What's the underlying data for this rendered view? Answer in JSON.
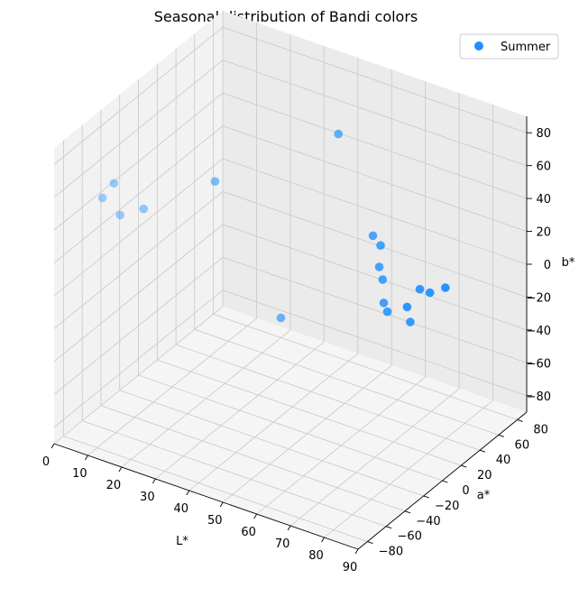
{
  "chart_data": {
    "type": "scatter",
    "title": "Seasonal distribution of Bandi colors",
    "xlabel": "L*",
    "ylabel": "a*",
    "zlabel": "b*",
    "xlim": [
      0,
      90
    ],
    "ylim": [
      -90,
      90
    ],
    "zlim": [
      -90,
      90
    ],
    "xticks": [
      "0",
      "10",
      "20",
      "30",
      "40",
      "50",
      "60",
      "70",
      "80",
      "90"
    ],
    "yticks": [
      "−80",
      "−60",
      "−40",
      "−20",
      "0",
      "20",
      "40",
      "60",
      "80"
    ],
    "zticks": [
      "−80",
      "−60",
      "−40",
      "−20",
      "0",
      "20",
      "40",
      "60",
      "80"
    ],
    "grid": true,
    "legend": {
      "placement": "top-right",
      "entries": [
        "Summer"
      ]
    },
    "series": [
      {
        "name": "Summer",
        "color": "#1e90ff",
        "points": [
          [
            42,
            62,
            58
          ],
          [
            55,
            52,
            10
          ],
          [
            57,
            53,
            5
          ],
          [
            58,
            48,
            -5
          ],
          [
            59,
            48,
            -12
          ],
          [
            61,
            42,
            -22
          ],
          [
            64,
            35,
            -22
          ],
          [
            70,
            48,
            -10
          ],
          [
            73,
            48,
            -10
          ],
          [
            77,
            50,
            -5
          ],
          [
            74,
            20,
            -5
          ],
          [
            68,
            45,
            -30
          ],
          [
            38,
            15,
            -35
          ],
          [
            8,
            -55,
            58
          ],
          [
            6,
            -60,
            50
          ],
          [
            9,
            -52,
            38
          ],
          [
            14,
            -45,
            42
          ],
          [
            26,
            -12,
            52
          ]
        ]
      }
    ]
  }
}
